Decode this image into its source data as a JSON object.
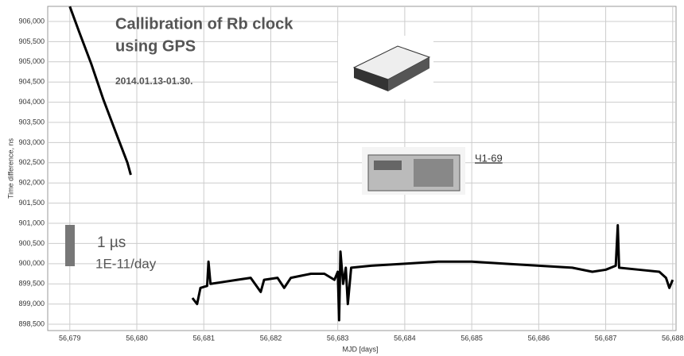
{
  "chart_data": {
    "type": "line",
    "title": [
      "Callibration of Rb clock",
      "using GPS"
    ],
    "subtitle": "2014.01.13-01.30.",
    "x_label": "MJD [days]",
    "y_label": "Time difference, ns",
    "annotations": [
      "1 µs",
      "1E-11/day",
      "Ч1-69"
    ],
    "grid": true,
    "xlim": [
      56678.67,
      56688.05
    ],
    "ylim": [
      898343,
      906374
    ],
    "xticks": [
      {
        "value": 56679,
        "label": "56,679"
      },
      {
        "value": 56680,
        "label": "56,680"
      },
      {
        "value": 56681,
        "label": "56,681"
      },
      {
        "value": 56682,
        "label": "56,682"
      },
      {
        "value": 56683,
        "label": "56,683"
      },
      {
        "value": 56684,
        "label": "56,684"
      },
      {
        "value": 56685,
        "label": "56,685"
      },
      {
        "value": 56686,
        "label": "56,686"
      },
      {
        "value": 56687,
        "label": "56,687"
      },
      {
        "value": 56688,
        "label": "56,688"
      }
    ],
    "yticks": [
      {
        "value": 898500,
        "label": "898,500"
      },
      {
        "value": 899000,
        "label": "899,000"
      },
      {
        "value": 899500,
        "label": "899,500"
      },
      {
        "value": 900000,
        "label": "900,000"
      },
      {
        "value": 900500,
        "label": "900,500"
      },
      {
        "value": 901000,
        "label": "901,000"
      },
      {
        "value": 901500,
        "label": "901,500"
      },
      {
        "value": 902000,
        "label": "902,000"
      },
      {
        "value": 902500,
        "label": "902,500"
      },
      {
        "value": 903000,
        "label": "903,000"
      },
      {
        "value": 903500,
        "label": "903,500"
      },
      {
        "value": 904000,
        "label": "904,000"
      },
      {
        "value": 904500,
        "label": "904,500"
      },
      {
        "value": 905000,
        "label": "905,000"
      },
      {
        "value": 905500,
        "label": "905,500"
      },
      {
        "value": 906000,
        "label": "906,000"
      }
    ],
    "series": [
      {
        "color": "#000000",
        "x": [
          56679.0,
          56679.14,
          56679.32,
          56679.5,
          56679.68,
          56679.86,
          56679.91
        ],
        "values": [
          906370,
          905740,
          904950,
          904070,
          903280,
          902500,
          902200
        ]
      },
      {
        "color": "#000000",
        "x": [
          56680.83,
          56680.9,
          56680.95,
          56681.05,
          56681.07,
          56681.1,
          56681.3,
          56681.5,
          56681.7,
          56681.85,
          56681.9,
          56682.1,
          56682.2,
          56682.3,
          56682.6,
          56682.8,
          56682.95,
          56683.0,
          56683.02,
          56683.04,
          56683.08,
          56683.12,
          56683.15,
          56683.2,
          56683.5,
          56684.0,
          56684.5,
          56685.0,
          56685.5,
          56686.0,
          56686.5,
          56686.8,
          56687.0,
          56687.15,
          56687.18,
          56687.2,
          56687.5,
          56687.8,
          56687.9,
          56687.95,
          56688.0
        ],
        "values": [
          899150,
          899000,
          899400,
          899450,
          900050,
          899500,
          899550,
          899600,
          899650,
          899300,
          899600,
          899650,
          899400,
          899650,
          899750,
          899750,
          899600,
          899800,
          898600,
          900300,
          899500,
          899900,
          899000,
          899900,
          899950,
          900000,
          900050,
          900050,
          900000,
          899950,
          899900,
          899800,
          899850,
          899950,
          900950,
          899900,
          899850,
          899800,
          899650,
          899400,
          899600
        ]
      }
    ]
  }
}
